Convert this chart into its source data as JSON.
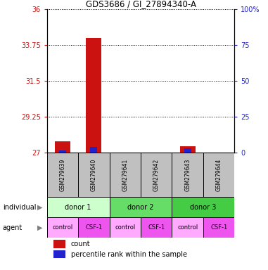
{
  "title": "GDS3686 / GI_27894340-A",
  "samples": [
    "GSM279639",
    "GSM279640",
    "GSM279641",
    "GSM279642",
    "GSM279643",
    "GSM279644"
  ],
  "count_values": [
    27.7,
    34.2,
    27.0,
    27.0,
    27.4,
    27.0
  ],
  "percentile_values": [
    1.5,
    4.0,
    0.0,
    0.0,
    3.0,
    0.0
  ],
  "ylim_left": [
    27,
    36
  ],
  "ylim_right": [
    0,
    100
  ],
  "yticks_left": [
    27,
    29.25,
    31.5,
    33.75,
    36
  ],
  "yticks_right": [
    0,
    25,
    50,
    75,
    100
  ],
  "ytick_labels_left": [
    "27",
    "29.25",
    "31.5",
    "33.75",
    "36"
  ],
  "ytick_labels_right": [
    "0",
    "25",
    "50",
    "75",
    "100%"
  ],
  "count_color": "#cc1111",
  "percentile_color": "#2222cc",
  "bar_width": 0.5,
  "individual_groups": [
    {
      "label": "donor 1",
      "start": 0,
      "end": 2,
      "color": "#ccffcc"
    },
    {
      "label": "donor 2",
      "start": 2,
      "end": 4,
      "color": "#66dd66"
    },
    {
      "label": "donor 3",
      "start": 4,
      "end": 6,
      "color": "#44cc44"
    }
  ],
  "agent_colors": {
    "control": "#ffaaff",
    "CSF-1": "#ee55ee"
  },
  "agent_groups": [
    "control",
    "CSF-1",
    "control",
    "CSF-1",
    "control",
    "CSF-1"
  ],
  "individual_label": "individual",
  "agent_label": "agent",
  "legend_count": "count",
  "legend_percentile": "percentile rank within the sample",
  "sample_box_color": "#c0c0c0",
  "fig_width": 3.81,
  "fig_height": 3.84,
  "dpi": 100
}
